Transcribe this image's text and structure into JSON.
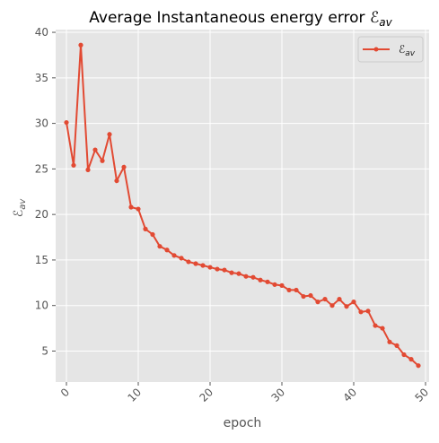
{
  "chart_data": {
    "type": "line",
    "title": "Average Instantaneous energy error ℰ",
    "title_sub": "av",
    "xlabel": "epoch",
    "ylabel": "ℰ",
    "ylabel_sub": "av",
    "xlim": [
      -1.5,
      50.5
    ],
    "ylim": [
      1.6,
      40.3
    ],
    "xticks": [
      0,
      10,
      20,
      30,
      40,
      50
    ],
    "yticks": [
      5,
      10,
      15,
      20,
      25,
      30,
      35,
      40
    ],
    "grid": true,
    "legend_position": "top-right",
    "series": [
      {
        "name": "ℰ",
        "name_sub": "av",
        "color": "#e24a33",
        "x": [
          0,
          1,
          2,
          3,
          4,
          5,
          6,
          7,
          8,
          9,
          10,
          11,
          12,
          13,
          14,
          15,
          16,
          17,
          18,
          19,
          20,
          21,
          22,
          23,
          24,
          25,
          26,
          27,
          28,
          29,
          30,
          31,
          32,
          33,
          34,
          35,
          36,
          37,
          38,
          39,
          40,
          41,
          42,
          43,
          44,
          45,
          46,
          47,
          48,
          49
        ],
        "values": [
          30.1,
          25.4,
          38.6,
          24.9,
          27.1,
          25.9,
          28.8,
          23.7,
          25.2,
          20.8,
          20.6,
          18.4,
          17.8,
          16.5,
          16.1,
          15.5,
          15.2,
          14.8,
          14.6,
          14.4,
          14.2,
          14.0,
          13.9,
          13.6,
          13.5,
          13.2,
          13.1,
          12.8,
          12.6,
          12.3,
          12.2,
          11.7,
          11.7,
          11.0,
          11.1,
          10.4,
          10.7,
          10.0,
          10.7,
          9.9,
          10.4,
          9.3,
          9.4,
          7.8,
          7.5,
          6.0,
          5.6,
          4.6,
          4.1,
          3.4
        ]
      }
    ]
  }
}
